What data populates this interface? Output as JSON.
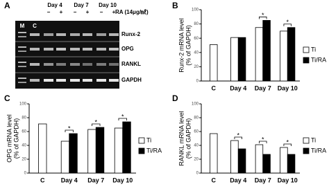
{
  "panel_a": {
    "label": "A",
    "lanes": [
      "M",
      "C"
    ],
    "days": [
      "Day 4",
      "Day 7",
      "Day 10"
    ],
    "ra_signs": [
      "−",
      "+",
      "−",
      "+",
      "−",
      "+"
    ],
    "treatment": "RA (14μg/㎖)",
    "genes": [
      "Runx-2",
      "OPG",
      "RANKL",
      "GAPDH"
    ]
  },
  "chart_data": [
    {
      "type": "bar",
      "panel_label": "B",
      "ylabel": [
        "Runx-2 mRNA level",
        "(% of GAPDH)"
      ],
      "categories": [
        "C",
        "Day 4",
        "Day 7",
        "Day 10"
      ],
      "series": [
        {
          "name": "Ti",
          "color": "#ffffff",
          "values": [
            51,
            61,
            75,
            70
          ]
        },
        {
          "name": "Ti/RA",
          "color": "#000000",
          "values": [
            null,
            61,
            85,
            75
          ]
        }
      ],
      "significance": [
        null,
        null,
        "*",
        "*"
      ],
      "ylim": [
        0,
        100
      ],
      "yticks": [
        0,
        20,
        40,
        60,
        80,
        100
      ]
    },
    {
      "type": "bar",
      "panel_label": "C",
      "ylabel": [
        "OPG mRNA level",
        "(% of GAPDH)"
      ],
      "categories": [
        "C",
        "Day 4",
        "Day 7",
        "Day 10"
      ],
      "series": [
        {
          "name": "Ti",
          "color": "#ffffff",
          "values": [
            71,
            46,
            63,
            65
          ]
        },
        {
          "name": "Ti/RA",
          "color": "#000000",
          "values": [
            null,
            57,
            66,
            74
          ]
        }
      ],
      "significance": [
        null,
        "*",
        "*",
        "*"
      ],
      "ylim": [
        0,
        100
      ],
      "yticks": [
        0,
        20,
        40,
        60,
        80,
        100
      ]
    },
    {
      "type": "bar",
      "panel_label": "D",
      "ylabel": [
        "RANKL mRNA level",
        "(% of GAPDH)"
      ],
      "categories": [
        "C",
        "Day 4",
        "Day 7",
        "Day 10"
      ],
      "series": [
        {
          "name": "Ti",
          "color": "#ffffff",
          "values": [
            57,
            47,
            41,
            37
          ]
        },
        {
          "name": "Ti/RA",
          "color": "#000000",
          "values": [
            null,
            35,
            27,
            27
          ]
        }
      ],
      "significance": [
        null,
        "*",
        "*",
        "*"
      ],
      "ylim": [
        0,
        100
      ],
      "yticks": [
        0,
        20,
        40,
        60,
        80,
        100
      ]
    }
  ]
}
